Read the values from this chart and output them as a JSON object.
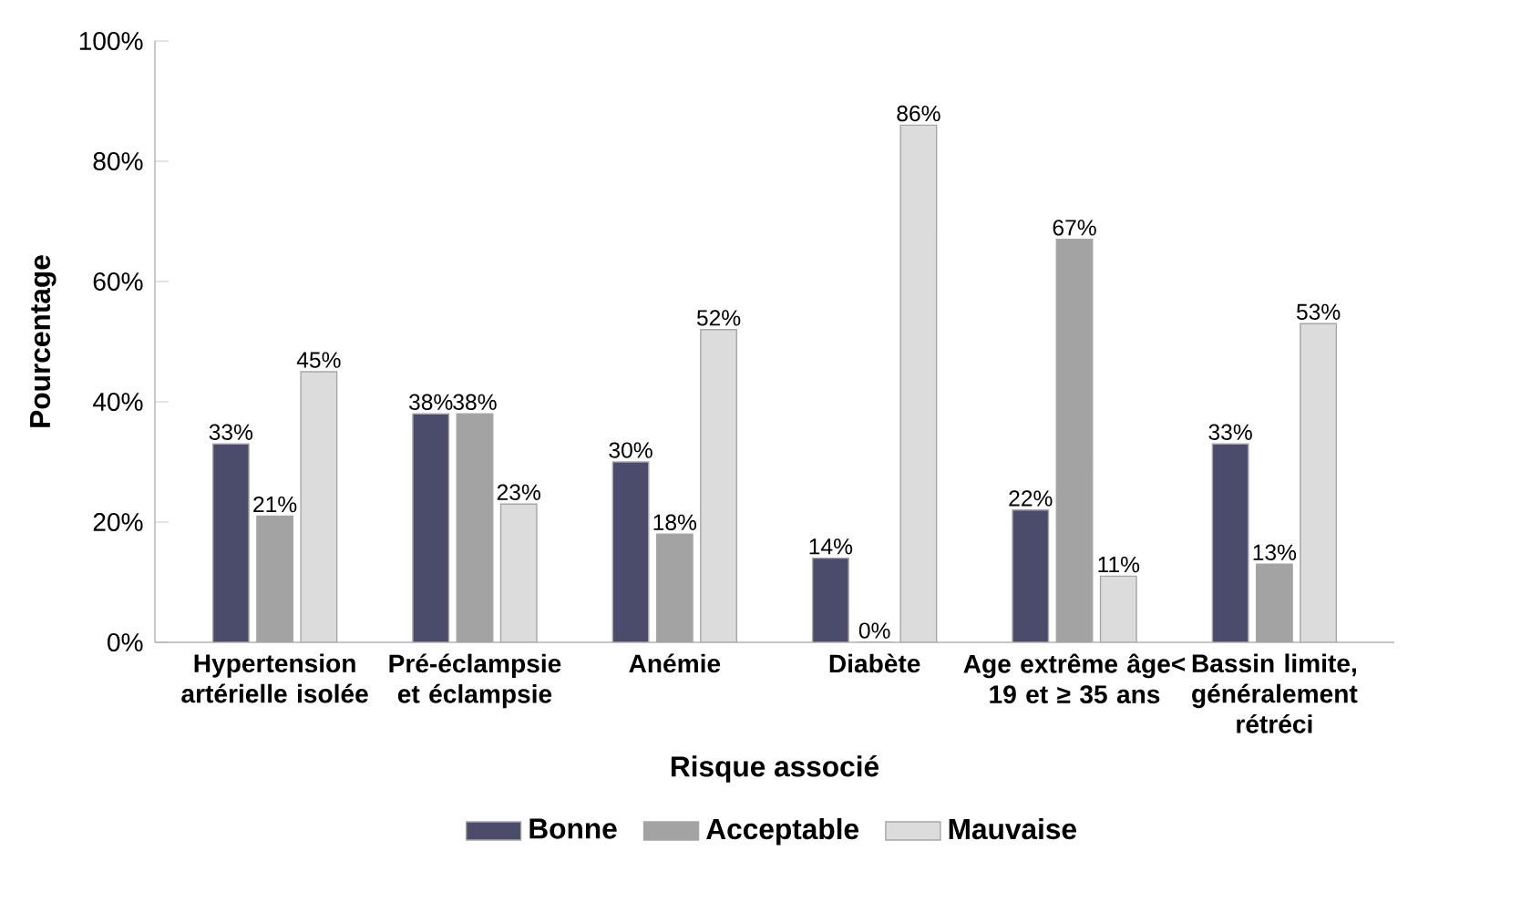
{
  "chart_data": {
    "type": "bar",
    "xlabel": "Risque associé",
    "ylabel": "Pourcentage",
    "categories": [
      "Hypertension artérielle isolée",
      "Pré-éclampsie et éclampsie",
      "Anémie",
      "Diabète",
      "Age extrême âge< 19 et ≥ 35 ans",
      "Bassin limite, généralement rétréci"
    ],
    "series": [
      {
        "name": "Bonne",
        "color": "#4b4b6b",
        "values": [
          33,
          38,
          30,
          14,
          22,
          33
        ],
        "value_labels": [
          "33%",
          "38%",
          "30%",
          "14%",
          "22%",
          "33%"
        ]
      },
      {
        "name": "Acceptable",
        "color": "#a3a3a3",
        "values": [
          21,
          38,
          18,
          0,
          67,
          13
        ],
        "value_labels": [
          "21%",
          "38%",
          "18%",
          "0%",
          "67%",
          "13%"
        ]
      },
      {
        "name": "Mauvaise",
        "color": "#dcdcdc",
        "values": [
          45,
          23,
          52,
          86,
          11,
          53
        ],
        "value_labels": [
          "45%",
          "23%",
          "52%",
          "86%",
          "11%",
          "53%"
        ]
      }
    ],
    "ylim": [
      0,
      100
    ],
    "yticks": [
      {
        "value": 0,
        "label": "0%"
      },
      {
        "value": 20,
        "label": "20%"
      },
      {
        "value": 40,
        "label": "40%"
      },
      {
        "value": 60,
        "label": "60%"
      },
      {
        "value": 80,
        "label": "80%"
      },
      {
        "value": 100,
        "label": "100%"
      }
    ],
    "grid": false,
    "legend": "bottom"
  }
}
